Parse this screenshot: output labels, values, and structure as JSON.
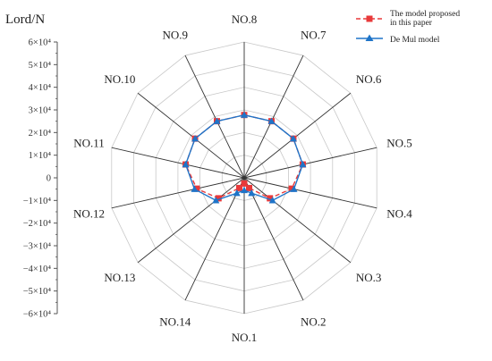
{
  "chart_data": {
    "type": "radar",
    "ylabel": "Lord/N",
    "ylim": [
      -60000,
      60000
    ],
    "yticks": [
      {
        "value": 60000,
        "label": "6×10⁴"
      },
      {
        "value": 50000,
        "label": "5×10⁴"
      },
      {
        "value": 40000,
        "label": "4×10⁴"
      },
      {
        "value": 30000,
        "label": "3×10⁴"
      },
      {
        "value": 20000,
        "label": "2×10⁴"
      },
      {
        "value": 10000,
        "label": "1×10⁴"
      },
      {
        "value": 0,
        "label": "0"
      },
      {
        "value": -10000,
        "label": "−1×10⁴"
      },
      {
        "value": -20000,
        "label": "−2×10⁴"
      },
      {
        "value": -30000,
        "label": "−3×10⁴"
      },
      {
        "value": -40000,
        "label": "−4×10⁴"
      },
      {
        "value": -50000,
        "label": "−5×10⁴"
      },
      {
        "value": -60000,
        "label": "−6×10⁴"
      }
    ],
    "categories": [
      "NO.1",
      "NO.2",
      "NO.3",
      "NO.4",
      "NO.5",
      "NO.6",
      "NO.7",
      "NO.8",
      "NO.9",
      "NO.10",
      "NO.11",
      "NO.12",
      "NO.13",
      "NO.14"
    ],
    "series": [
      {
        "name": "The model proposed in this paper",
        "color": "#e8393a",
        "marker": "square",
        "line": "dashed",
        "values": [
          -55000,
          -50000,
          -31000,
          -17000,
          -7000,
          -4500,
          -4500,
          -4500,
          -4500,
          -4500,
          -7000,
          -17000,
          -31000,
          -50000
        ]
      },
      {
        "name": "De Mul model",
        "color": "#1f74c8",
        "marker": "triangle",
        "line": "solid",
        "values": [
          -49000,
          -45000,
          -28000,
          -15000,
          -7000,
          -4500,
          -4500,
          -4500,
          -4500,
          -4500,
          -7000,
          -15000,
          -28000,
          -45000
        ]
      }
    ],
    "legend": "top-right",
    "grid": true
  }
}
